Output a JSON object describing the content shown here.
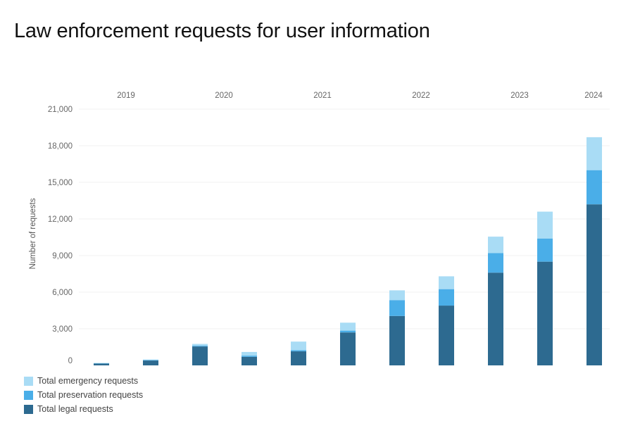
{
  "title": "Law enforcement requests for user information",
  "colors": {
    "legal": "#2d6a90",
    "preservation": "#4aaee8",
    "emergency": "#a9dcf5",
    "grid": "#f2f2f2",
    "text": "#666666"
  },
  "chart_data": {
    "type": "bar",
    "stacked": true,
    "title": "Law enforcement requests for user information",
    "ylabel": "Number of requests",
    "xlabel": "",
    "ylim": [
      0,
      21000
    ],
    "yticks": [
      0,
      3000,
      6000,
      9000,
      12000,
      15000,
      18000,
      21000
    ],
    "ytick_labels": [
      "0",
      "3,000",
      "6,000",
      "9,000",
      "12,000",
      "15,000",
      "18,000",
      "21,000"
    ],
    "year_labels": [
      "2019",
      "2020",
      "2021",
      "2022",
      "2023",
      "2024"
    ],
    "periods": [
      "2019 H1",
      "2019 H2",
      "2020 H1",
      "2020 H2",
      "2021 H1",
      "2021 H2",
      "2022 H1",
      "2022 H2",
      "2023 H1",
      "2023 H2",
      "2024 H1"
    ],
    "legend_position": "bottom-left",
    "grid": true,
    "series": [
      {
        "name": "Total legal requests",
        "key": "legal",
        "values": [
          150,
          400,
          1550,
          700,
          1150,
          2700,
          4050,
          4900,
          7600,
          8500,
          13200
        ]
      },
      {
        "name": "Total preservation requests",
        "key": "preservation",
        "values": [
          20,
          30,
          60,
          100,
          100,
          150,
          1300,
          1350,
          1600,
          1900,
          2800
        ]
      },
      {
        "name": "Total emergency requests",
        "key": "emergency",
        "values": [
          30,
          50,
          150,
          300,
          700,
          650,
          800,
          1050,
          1350,
          2200,
          2700
        ]
      }
    ]
  },
  "legend": [
    {
      "label": "Total emergency requests",
      "key": "emergency"
    },
    {
      "label": "Total preservation requests",
      "key": "preservation"
    },
    {
      "label": "Total legal requests",
      "key": "legal"
    }
  ]
}
